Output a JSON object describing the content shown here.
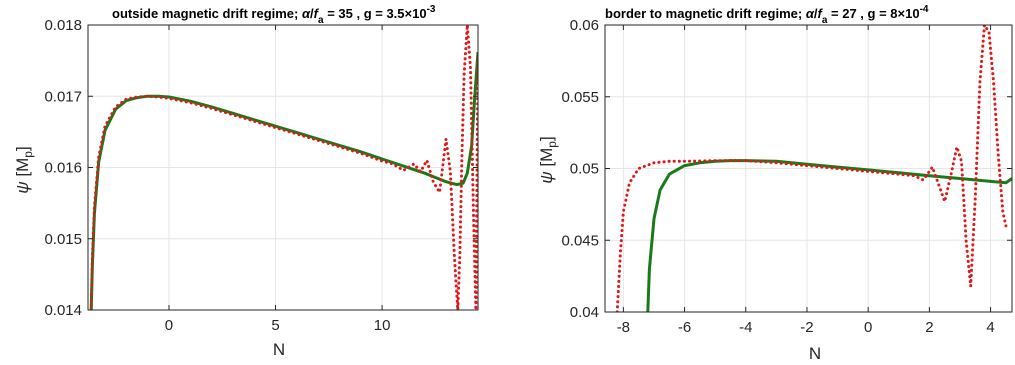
{
  "chart_data": [
    {
      "type": "line",
      "title": "outside magnetic drift regime; α/f_a = 35 , g = 3.5×10^-3",
      "title_parts": {
        "lead": "outside magnetic drift regime; ",
        "alpha": "α",
        "slash": "/",
        "f": "f",
        "f_sub": "a",
        "mid": " = 35 , g = 3.5",
        "times": "×",
        "ten": "10",
        "exp": "-3"
      },
      "xlabel": "N",
      "ylabel": "ψ [M_p]",
      "ylabel_parts": {
        "psi": "ψ",
        "open": " [M",
        "sub": "p",
        "close": "]"
      },
      "xlim": [
        -3.8,
        14.5
      ],
      "ylim": [
        0.014,
        0.018
      ],
      "xticks": [
        0,
        5,
        10
      ],
      "xtick_labels": [
        "0",
        "5",
        "10"
      ],
      "yticks": [
        0.014,
        0.015,
        0.016,
        0.017,
        0.018
      ],
      "ytick_labels": [
        "0.014",
        "0.015",
        "0.016",
        "0.017",
        "0.018"
      ],
      "grid": true,
      "series": [
        {
          "style": "solid",
          "color": "#1a7a1a",
          "x": [
            -3.65,
            -3.6,
            -3.5,
            -3.3,
            -3.0,
            -2.5,
            -2.0,
            -1.5,
            -1.0,
            -0.5,
            0,
            1,
            2,
            3,
            4,
            5,
            6,
            7,
            8,
            9,
            10,
            11,
            12,
            12.5,
            13.0,
            13.5,
            13.8,
            14.0,
            14.2,
            14.35,
            14.5
          ],
          "y": [
            0.014,
            0.0146,
            0.01535,
            0.01608,
            0.01652,
            0.01682,
            0.01694,
            0.01698,
            0.017,
            0.017,
            0.01699,
            0.01693,
            0.01685,
            0.01676,
            0.01667,
            0.01658,
            0.01649,
            0.0164,
            0.01631,
            0.01622,
            0.01612,
            0.01602,
            0.01592,
            0.01586,
            0.0158,
            0.01576,
            0.01578,
            0.01592,
            0.0163,
            0.017,
            0.01762
          ]
        },
        {
          "style": "dotted",
          "color": "#e01818",
          "x": [
            -3.65,
            -3.6,
            -3.5,
            -3.3,
            -3.0,
            -2.5,
            -2.0,
            -1.5,
            -1.0,
            -0.5,
            0,
            1,
            2,
            3,
            4,
            5,
            6,
            7,
            8,
            9,
            10,
            10.5,
            11.0,
            11.5,
            11.8,
            12.1,
            12.4,
            12.7,
            13.0,
            13.2,
            13.4,
            13.55,
            13.65,
            13.75,
            13.85,
            14.0,
            14.15,
            14.3,
            14.4,
            14.5
          ],
          "y": [
            0.014,
            0.0147,
            0.01545,
            0.01615,
            0.01658,
            0.01685,
            0.01696,
            0.01699,
            0.017,
            0.01699,
            0.01697,
            0.01691,
            0.01683,
            0.01674,
            0.01665,
            0.01656,
            0.01647,
            0.01638,
            0.01629,
            0.0162,
            0.01609,
            0.01605,
            0.01596,
            0.01605,
            0.01594,
            0.0161,
            0.0158,
            0.01565,
            0.0164,
            0.01595,
            0.0147,
            0.014,
            0.0148,
            0.0162,
            0.0173,
            0.018,
            0.0174,
            0.0152,
            0.014,
            0.0176
          ]
        }
      ]
    },
    {
      "type": "line",
      "title": "border to magnetic drift regime; α/f_a = 27 , g = 8×10^-4",
      "title_parts": {
        "lead": "border to magnetic drift regime; ",
        "alpha": "α",
        "slash": "/",
        "f": "f",
        "f_sub": "a",
        "mid": " = 27 , g = 8",
        "times": "×",
        "ten": "10",
        "exp": "-4"
      },
      "xlabel": "N",
      "ylabel": "ψ [M_p]",
      "ylabel_parts": {
        "psi": "ψ",
        "open": " [M",
        "sub": "p",
        "close": "]"
      },
      "xlim": [
        -8.6,
        4.7
      ],
      "ylim": [
        0.04,
        0.06
      ],
      "xticks": [
        -8,
        -6,
        -4,
        -2,
        0,
        2,
        4
      ],
      "xtick_labels": [
        "-8",
        "-6",
        "-4",
        "-2",
        "0",
        "2",
        "4"
      ],
      "yticks": [
        0.04,
        0.045,
        0.05,
        0.055,
        0.06
      ],
      "ytick_labels": [
        "0.04",
        "0.045",
        "0.05",
        "0.055",
        "0.06"
      ],
      "grid": true,
      "series": [
        {
          "style": "solid",
          "color": "#1a7a1a",
          "x": [
            -7.2,
            -7.15,
            -7.0,
            -6.8,
            -6.5,
            -6.0,
            -5.5,
            -5.0,
            -4.5,
            -4.0,
            -3.0,
            -2.0,
            -1.0,
            0,
            1,
            2,
            3,
            4,
            4.5,
            4.7
          ],
          "y": [
            0.04,
            0.043,
            0.0465,
            0.0485,
            0.0496,
            0.0502,
            0.0504,
            0.0505,
            0.05055,
            0.05055,
            0.0505,
            0.0503,
            0.0501,
            0.0499,
            0.0497,
            0.0495,
            0.0493,
            0.0491,
            0.049,
            0.0493
          ]
        },
        {
          "style": "dotted",
          "color": "#e01818",
          "x": [
            -8.2,
            -8.1,
            -8.0,
            -7.8,
            -7.5,
            -7.0,
            -6.5,
            -6.0,
            -5.0,
            -4.0,
            -3.0,
            -2.0,
            -1.0,
            0,
            1.0,
            1.5,
            1.8,
            2.1,
            2.3,
            2.5,
            2.7,
            2.9,
            3.05,
            3.2,
            3.35,
            3.5,
            3.65,
            3.8,
            3.95,
            4.1,
            4.25,
            4.4,
            4.5
          ],
          "y": [
            0.04,
            0.044,
            0.047,
            0.049,
            0.05,
            0.0504,
            0.0505,
            0.0505,
            0.05055,
            0.05055,
            0.0504,
            0.0502,
            0.05,
            0.0498,
            0.0496,
            0.0495,
            0.0492,
            0.0501,
            0.0489,
            0.0477,
            0.0495,
            0.0515,
            0.0505,
            0.045,
            0.0418,
            0.048,
            0.056,
            0.06,
            0.0595,
            0.056,
            0.051,
            0.047,
            0.046
          ]
        }
      ]
    }
  ]
}
